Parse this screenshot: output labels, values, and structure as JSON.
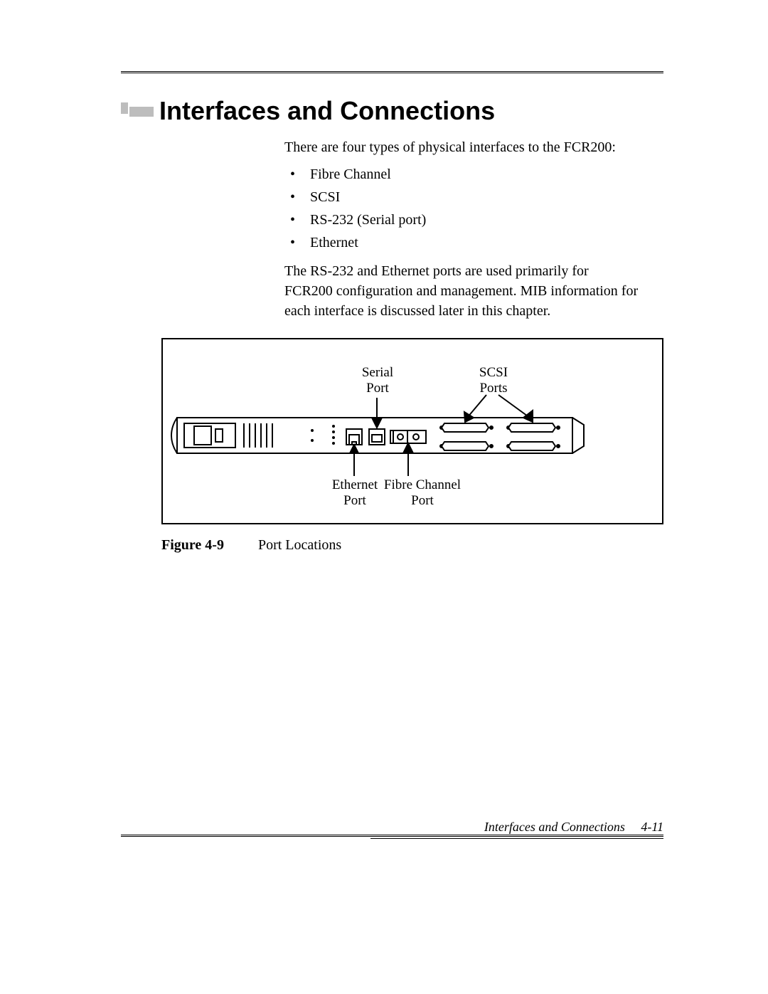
{
  "heading": "Interfaces and Connections",
  "intro": "There are four types of physical interfaces to the FCR200:",
  "bullets": [
    "Fibre Channel",
    "SCSI",
    "RS-232 (Serial port)",
    "Ethernet"
  ],
  "para2": "The RS-232 and Ethernet ports are used primarily for FCR200 configuration and management. MIB information for each interface is discussed later in this chapter.",
  "figure": {
    "label": "Figure 4-9",
    "caption": "Port Locations",
    "labels": {
      "serial": "Serial\nPort",
      "scsi": "SCSI\nPorts",
      "ethernet": "Ethernet\nPort",
      "fibre": "Fibre Channel\nPort"
    },
    "colors": {
      "stroke": "#000000",
      "fill": "#ffffff"
    }
  },
  "footer": {
    "section": "Interfaces and Connections",
    "page": "4-11"
  }
}
